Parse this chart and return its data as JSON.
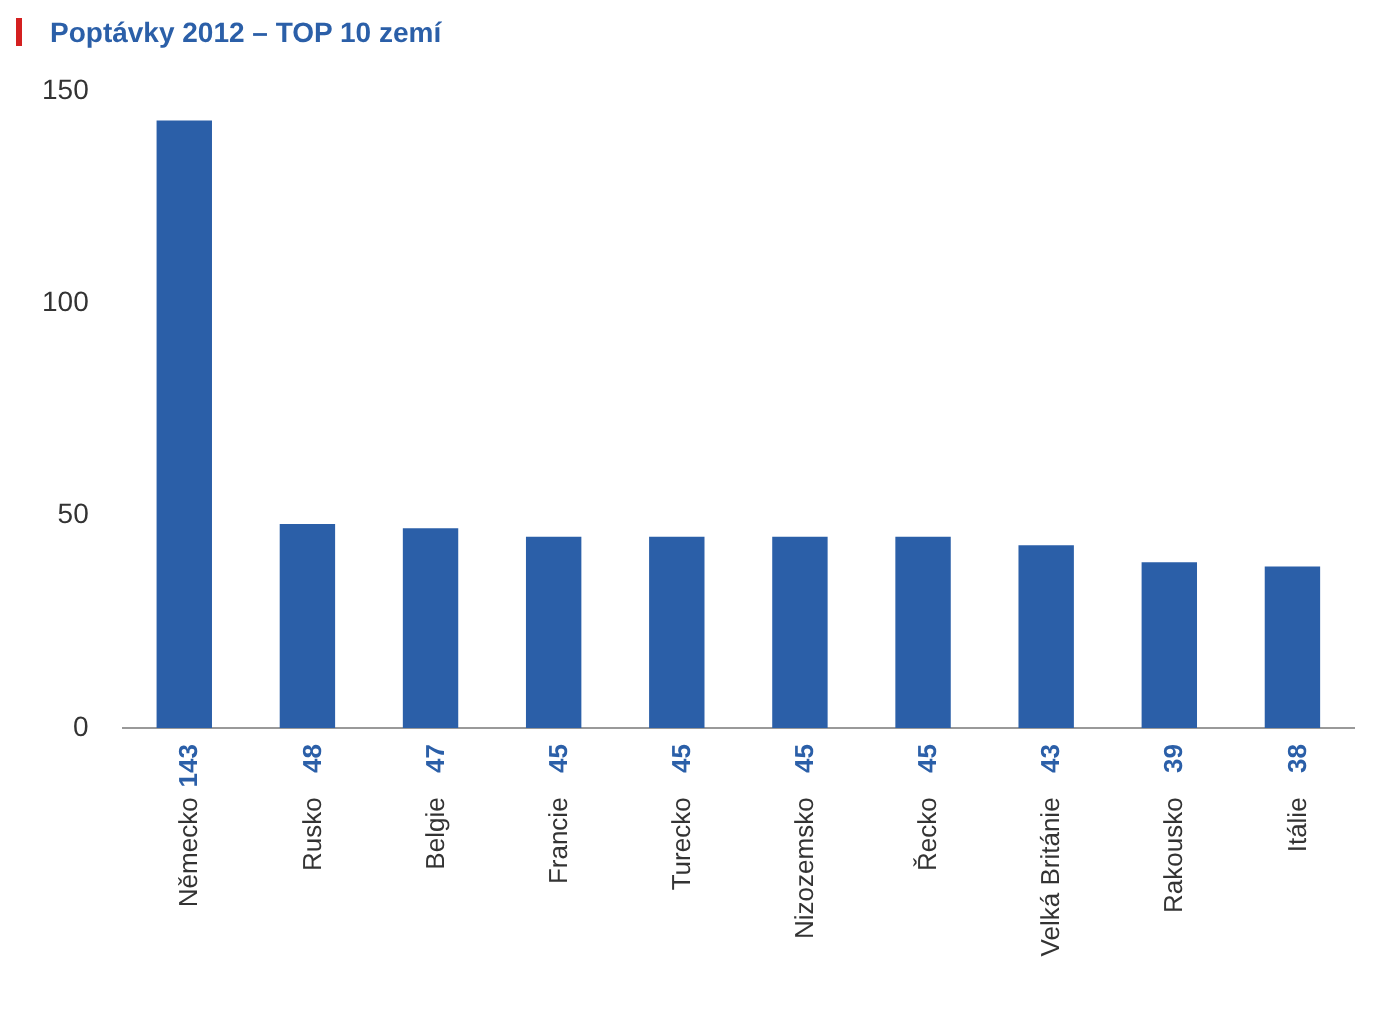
{
  "chart_data": {
    "type": "bar",
    "title": "Poptávky 2012 – TOP 10 zemí",
    "categories": [
      "Německo",
      "Rusko",
      "Belgie",
      "Francie",
      "Turecko",
      "Nizozemsko",
      "Řecko",
      "Velká Británie",
      "Rakousko",
      "Itálie"
    ],
    "values": [
      143,
      48,
      47,
      45,
      45,
      45,
      45,
      43,
      39,
      38
    ],
    "color": "#2b5fa8",
    "ylim": [
      0,
      150
    ],
    "yticks": [
      0,
      50,
      100,
      150
    ],
    "grid": false,
    "legend": false,
    "data_labels": true
  }
}
